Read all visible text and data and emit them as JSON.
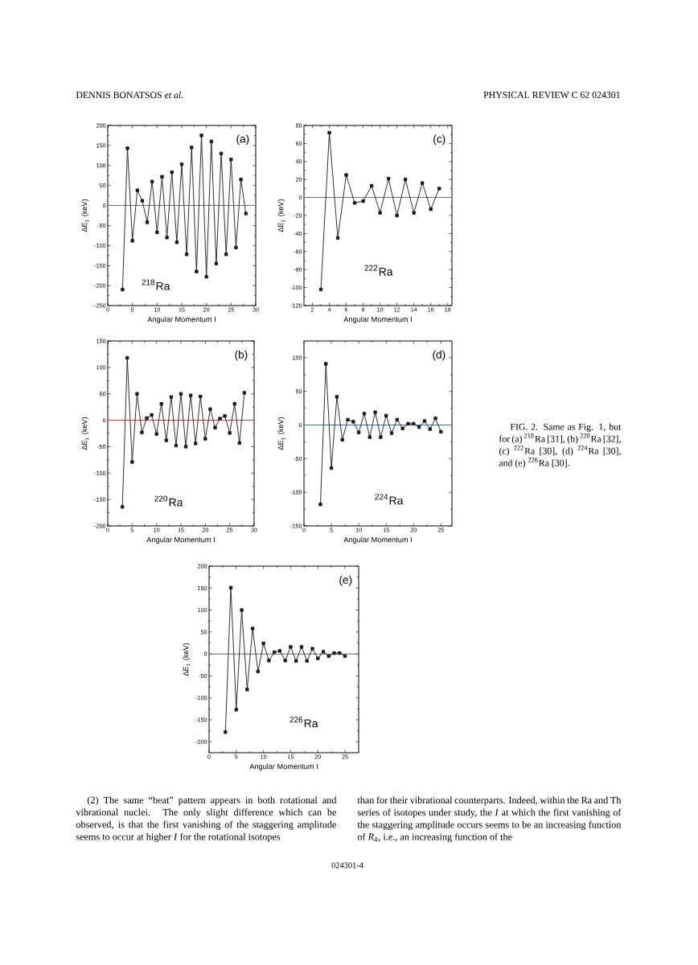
{
  "chart_data": [
    {
      "type": "line",
      "xlabel": "Angular Momentum I",
      "ylabel": "ΔE$_{1}$ (keV)",
      "x": [
        3,
        4,
        5,
        6,
        7,
        8,
        9,
        10,
        11,
        12,
        13,
        14,
        15,
        16,
        17,
        18,
        19,
        20,
        21,
        22,
        23,
        24,
        25,
        26,
        27,
        28
      ],
      "values": [
        -210,
        143,
        -88,
        38,
        12,
        -42,
        60,
        -67,
        72,
        -80,
        83,
        -92,
        103,
        -122,
        145,
        -165,
        175,
        -178,
        160,
        -145,
        130,
        -122,
        115,
        -105,
        65,
        -20
      ],
      "color": "#1a1a1a",
      "marker": "square",
      "xlim": [
        0,
        30
      ],
      "ylim": [
        -250,
        200
      ],
      "xticks": [
        0,
        5,
        10,
        15,
        20,
        25,
        30
      ],
      "yticks": [
        -250,
        -200,
        -150,
        -100,
        -50,
        0,
        50,
        100,
        150,
        200
      ],
      "ref_lines": [
        {
          "axis": "y",
          "value": 0,
          "color": "#c0504d"
        }
      ],
      "annotations": [
        "(a)",
        "$^{218}$Ra"
      ]
    },
    {
      "type": "line",
      "xlabel": "Angular Momentum I",
      "ylabel": "ΔE$_{1}$ (keV)",
      "x": [
        3,
        4,
        5,
        6,
        7,
        8,
        9,
        10,
        11,
        12,
        13,
        14,
        15,
        16,
        17
      ],
      "values": [
        -102,
        72,
        -45,
        25,
        -6,
        -4,
        13,
        -17,
        21,
        -20,
        20,
        -17,
        16,
        -13,
        10
      ],
      "color": "#1a1a1a",
      "marker": "square",
      "xlim": [
        1,
        18.5
      ],
      "ylim": [
        -120,
        80
      ],
      "xticks": [
        2,
        4,
        6,
        8,
        10,
        12,
        14,
        16,
        18
      ],
      "yticks": [
        -120,
        -100,
        -80,
        -60,
        -40,
        -20,
        0,
        20,
        40,
        60,
        80
      ],
      "ref_lines": [
        {
          "axis": "y",
          "value": 0,
          "color": "#c0504d"
        }
      ],
      "annotations": [
        "(c)",
        "$^{222}$Ra"
      ]
    },
    {
      "type": "line",
      "xlabel": "Angular Momentum I",
      "ylabel": "ΔE$_{1}$ (keV)",
      "x": [
        3,
        4,
        5,
        6,
        7,
        8,
        9,
        10,
        11,
        12,
        13,
        14,
        15,
        16,
        17,
        18,
        19,
        20,
        21,
        22,
        23,
        24,
        25,
        26,
        27,
        28
      ],
      "values": [
        -164,
        118,
        -79,
        50,
        -23,
        4,
        10,
        -26,
        31,
        -38,
        44,
        -48,
        50,
        -50,
        47,
        -44,
        45,
        -35,
        21,
        -14,
        3,
        8,
        -24,
        31,
        -43,
        52
      ],
      "color": "#1a1a1a",
      "marker": "square",
      "xlim": [
        0,
        30
      ],
      "ylim": [
        -200,
        150
      ],
      "xticks": [
        0,
        5,
        10,
        15,
        20,
        25,
        30
      ],
      "yticks": [
        -200,
        -150,
        -100,
        -50,
        0,
        50,
        100,
        150
      ],
      "ref_lines": [
        {
          "axis": "y",
          "value": 0,
          "color": "#c0504d"
        }
      ],
      "annotations": [
        "(b)",
        "$^{220}$Ra"
      ]
    },
    {
      "type": "line",
      "xlabel": "Angular Momentum I",
      "ylabel": "ΔE$_{1}$ (keV)",
      "x": [
        3,
        4,
        5,
        6,
        7,
        8,
        9,
        10,
        11,
        12,
        13,
        14,
        15,
        16,
        17,
        18,
        19,
        20,
        21,
        22,
        23,
        24,
        25
      ],
      "values": [
        -118,
        91,
        -64,
        42,
        -22,
        8,
        5,
        -11,
        17,
        -18,
        19,
        -18,
        14,
        -12,
        8,
        -5,
        2,
        2,
        -3,
        6,
        -6,
        10,
        -10
      ],
      "color": "#1a1a1a",
      "marker": "square",
      "xlim": [
        0,
        27
      ],
      "ylim": [
        -150,
        125
      ],
      "xticks": [
        0,
        5,
        10,
        15,
        20,
        25
      ],
      "yticks": [
        -150,
        -100,
        -50,
        0,
        50,
        100
      ],
      "ref_lines": [
        {
          "axis": "y",
          "value": 0,
          "color": "#4a6a9a"
        }
      ],
      "annotations": [
        "(d)",
        "$^{224}$Ra"
      ]
    },
    {
      "type": "line",
      "xlabel": "Angular Momentum I",
      "ylabel": "ΔE$_{1}$ (keV)",
      "x": [
        3,
        4,
        5,
        6,
        7,
        8,
        9,
        10,
        11,
        12,
        13,
        14,
        15,
        16,
        17,
        18,
        19,
        20,
        21,
        22,
        23,
        24,
        25
      ],
      "values": [
        -178,
        151,
        -127,
        100,
        -81,
        58,
        -40,
        24,
        -15,
        4,
        7,
        -15,
        16,
        -16,
        16,
        -16,
        12,
        -10,
        5,
        -5,
        2,
        2,
        -5
      ],
      "color": "#1a1a1a",
      "marker": "square",
      "xlim": [
        0,
        27.5
      ],
      "ylim": [
        -225,
        200
      ],
      "xticks": [
        0,
        5,
        10,
        15,
        20,
        25
      ],
      "yticks": [
        -200,
        -150,
        -100,
        -50,
        0,
        50,
        100,
        150,
        200
      ],
      "ref_lines": [
        {
          "axis": "y",
          "value": 0,
          "color": "#4a6a9a"
        }
      ],
      "annotations": [
        "(e)",
        "$^{226}$Ra"
      ]
    },
    {
      "type": "other",
      "annotations": [
        "DENNIS BONATSOS *et al.*",
        "PHYSICAL REVIEW C 62 024301",
        "FIG. 2. Same as Fig. 1, but for (a) $^{218}$Ra [31], (b) $^{220}$Ra [32], (c) $^{222}$Ra [30], (d) $^{224}$Ra [30], and (e) $^{226}$Ra [30].",
        "(2) The same “beat” pattern appears in both rotational and vibrational nuclei. The only slight difference which can be observed, is that the first vanishing of the staggering amplitude seems to occur at higher *I* for the rotational isotopes",
        "than for their vibrational counterparts. Indeed, within the Ra and Th series of isotopes under study, the *I* at which the first vanishing of the staggering amplitude occurs seems to be an increasing function of *R*$_{4}$, i.e., an increasing function of the",
        "024301-4"
      ]
    }
  ]
}
